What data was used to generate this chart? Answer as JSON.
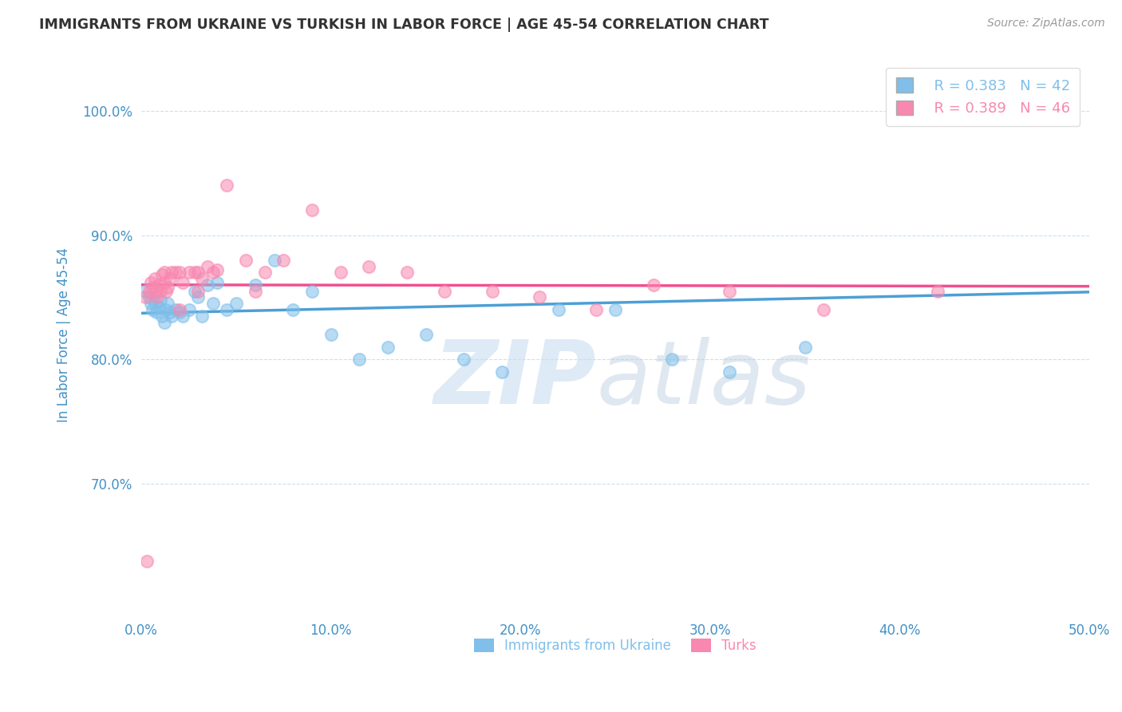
{
  "title": "IMMIGRANTS FROM UKRAINE VS TURKISH IN LABOR FORCE | AGE 45-54 CORRELATION CHART",
  "source": "Source: ZipAtlas.com",
  "ylabel": "In Labor Force | Age 45-54",
  "xlim": [
    0.0,
    0.5
  ],
  "ylim": [
    0.595,
    1.045
  ],
  "xticks": [
    0.0,
    0.1,
    0.2,
    0.3,
    0.4,
    0.5
  ],
  "xtick_labels": [
    "0.0%",
    "10.0%",
    "20.0%",
    "30.0%",
    "40.0%",
    "50.0%"
  ],
  "yticks": [
    0.7,
    0.8,
    0.9,
    1.0
  ],
  "ytick_labels": [
    "70.0%",
    "80.0%",
    "90.0%",
    "100.0%"
  ],
  "blue_color": "#7fbfea",
  "pink_color": "#f888b0",
  "trend_blue": "#4d9fd6",
  "trend_pink": "#f05090",
  "R_ukraine": 0.383,
  "N_ukraine": 42,
  "R_turks": 0.389,
  "N_turks": 46,
  "ukraine_x": [
    0.002,
    0.004,
    0.005,
    0.006,
    0.007,
    0.008,
    0.009,
    0.01,
    0.011,
    0.012,
    0.013,
    0.014,
    0.015,
    0.016,
    0.018,
    0.02,
    0.022,
    0.025,
    0.028,
    0.03,
    0.032,
    0.035,
    0.038,
    0.04,
    0.045,
    0.05,
    0.06,
    0.07,
    0.08,
    0.09,
    0.1,
    0.115,
    0.13,
    0.15,
    0.17,
    0.19,
    0.22,
    0.25,
    0.28,
    0.31,
    0.35,
    0.48
  ],
  "ukraine_y": [
    0.855,
    0.85,
    0.845,
    0.84,
    0.845,
    0.838,
    0.842,
    0.848,
    0.835,
    0.83,
    0.84,
    0.845,
    0.838,
    0.835,
    0.84,
    0.838,
    0.835,
    0.84,
    0.855,
    0.85,
    0.835,
    0.86,
    0.845,
    0.862,
    0.84,
    0.845,
    0.86,
    0.88,
    0.84,
    0.855,
    0.82,
    0.8,
    0.81,
    0.82,
    0.8,
    0.79,
    0.84,
    0.84,
    0.8,
    0.79,
    0.81,
    1.0
  ],
  "turks_x": [
    0.002,
    0.004,
    0.005,
    0.006,
    0.007,
    0.008,
    0.009,
    0.01,
    0.011,
    0.012,
    0.013,
    0.014,
    0.015,
    0.016,
    0.018,
    0.02,
    0.022,
    0.025,
    0.028,
    0.03,
    0.032,
    0.035,
    0.038,
    0.04,
    0.045,
    0.055,
    0.065,
    0.075,
    0.09,
    0.105,
    0.12,
    0.14,
    0.16,
    0.185,
    0.21,
    0.24,
    0.27,
    0.31,
    0.36,
    0.42,
    0.003,
    0.008,
    0.012,
    0.02,
    0.03,
    0.06
  ],
  "turks_y": [
    0.85,
    0.855,
    0.862,
    0.858,
    0.865,
    0.855,
    0.86,
    0.855,
    0.868,
    0.862,
    0.855,
    0.858,
    0.865,
    0.87,
    0.87,
    0.87,
    0.862,
    0.87,
    0.87,
    0.87,
    0.865,
    0.875,
    0.87,
    0.872,
    0.94,
    0.88,
    0.87,
    0.88,
    0.92,
    0.87,
    0.875,
    0.87,
    0.855,
    0.855,
    0.85,
    0.84,
    0.86,
    0.855,
    0.84,
    0.855,
    0.638,
    0.85,
    0.87,
    0.84,
    0.855,
    0.855
  ]
}
